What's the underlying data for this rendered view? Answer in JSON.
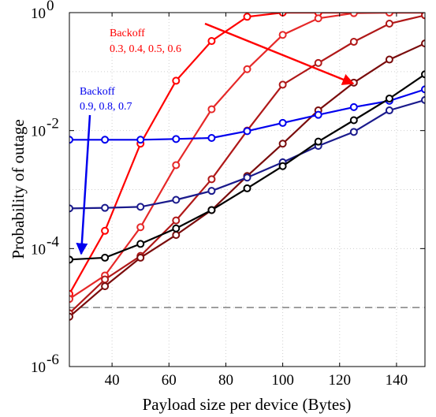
{
  "chart_data": {
    "type": "line",
    "title": "",
    "xlabel": "Payload size per device (Bytes)",
    "ylabel": "Probability of outage",
    "y_scale": "log",
    "xlim": [
      25,
      150
    ],
    "ylim": [
      1e-06,
      1
    ],
    "grid": true,
    "x_ticks": [
      40,
      60,
      80,
      100,
      120,
      140
    ],
    "x_tick_labels": [
      "40",
      "60",
      "80",
      "100",
      "120",
      "140"
    ],
    "y_ticks": [
      1e-06,
      0.0001,
      0.01,
      1
    ],
    "y_tick_labels": [
      {
        "base": "10",
        "exp": "-6"
      },
      {
        "base": "10",
        "exp": "-4"
      },
      {
        "base": "10",
        "exp": "-2"
      },
      {
        "base": "10",
        "exp": "0"
      }
    ],
    "x": [
      25,
      37.5,
      50,
      62.5,
      75,
      87.5,
      100,
      112.5,
      125,
      137.5,
      150
    ],
    "reference_line": {
      "y": 1e-05,
      "color": "#808080"
    },
    "series": [
      {
        "color": "#ff0000",
        "values": [
          1.7e-05,
          0.0002,
          0.006,
          0.07,
          0.33,
          0.85,
          1,
          1,
          1,
          1,
          1
        ]
      },
      {
        "color": "#e62828",
        "values": [
          1.4e-05,
          3.5e-05,
          0.00023,
          0.0026,
          0.023,
          0.11,
          0.42,
          0.8,
          0.98,
          1,
          1
        ]
      },
      {
        "color": "#b01818",
        "values": [
          8e-06,
          3e-05,
          7.5e-05,
          0.0003,
          0.0015,
          0.01,
          0.06,
          0.14,
          0.32,
          0.65,
          0.9
        ]
      },
      {
        "color": "#7a0c0c",
        "values": [
          7e-06,
          2.3e-05,
          7e-05,
          0.00017,
          0.00045,
          0.0017,
          0.006,
          0.022,
          0.065,
          0.16,
          0.3
        ]
      },
      {
        "color": "#0000ee",
        "values": [
          0.007,
          0.007,
          0.007,
          0.0072,
          0.0075,
          0.0098,
          0.0135,
          0.0185,
          0.025,
          0.032,
          0.05
        ]
      },
      {
        "color": "#1a1a8c",
        "values": [
          0.00048,
          0.00049,
          0.00051,
          0.00067,
          0.00095,
          0.0016,
          0.0029,
          0.0055,
          0.0095,
          0.022,
          0.033
        ]
      },
      {
        "color": "#000000",
        "values": [
          6.5e-05,
          7e-05,
          0.00012,
          0.00022,
          0.00045,
          0.00105,
          0.0025,
          0.0065,
          0.015,
          0.035,
          0.09
        ]
      }
    ],
    "annotations": [
      {
        "title": "Backoff",
        "values": "0.3, 0.4, 0.5, 0.6",
        "color": "#ff0000"
      },
      {
        "title": "Backoff",
        "values": "0.9, 0.8, 0.7",
        "color": "#0000ee"
      }
    ]
  }
}
